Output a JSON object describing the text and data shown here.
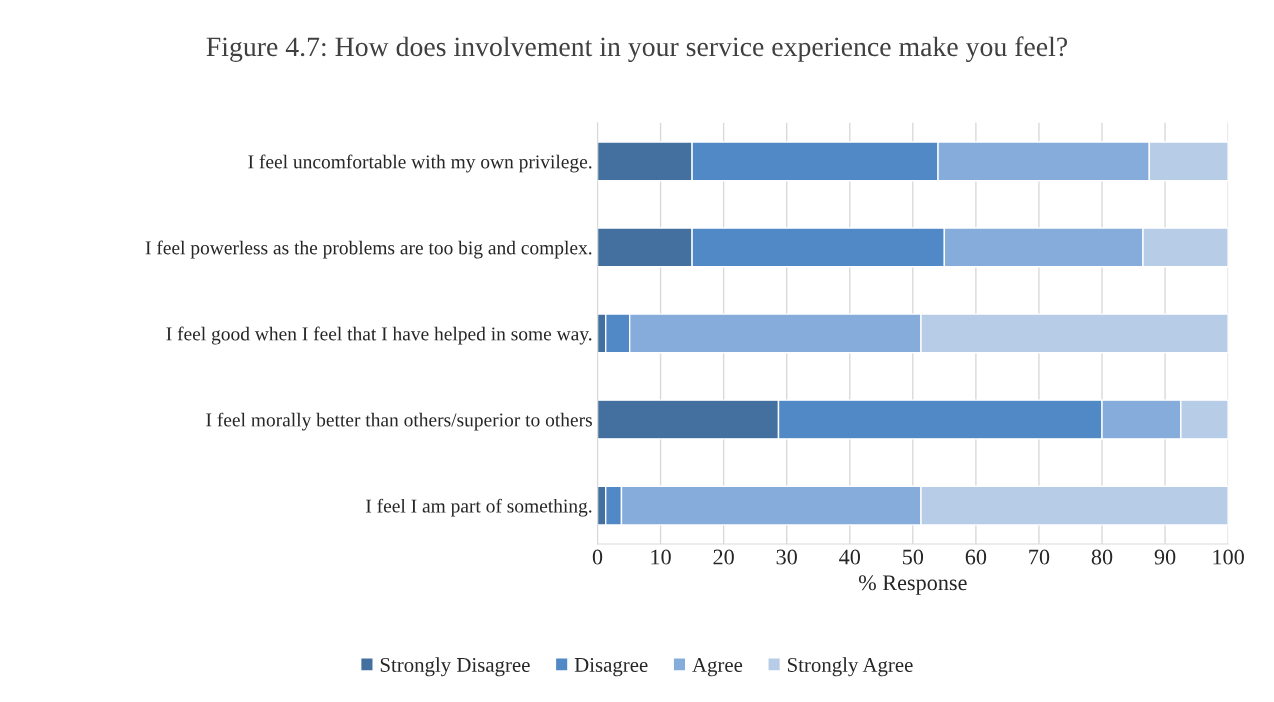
{
  "chart_data": {
    "type": "bar",
    "orientation": "horizontal",
    "stacked": true,
    "title": "Figure 4.7: How does involvement in your service experience make you feel?",
    "xlabel": "% Response",
    "categories": [
      "I feel uncomfortable with my own privilege.",
      "I feel powerless as the problems are too big and complex.",
      "I feel good when I feel that I have helped in some way.",
      "I feel morally better than others/superior to others",
      "I feel I am part of something."
    ],
    "series": [
      {
        "name": "Strongly Disagree",
        "color": "#44709f",
        "values": [
          15,
          15,
          1.3,
          28.7,
          1.3
        ]
      },
      {
        "name": "Disagree",
        "color": "#5089c6",
        "values": [
          39,
          40,
          3.8,
          51.3,
          2.5
        ]
      },
      {
        "name": "Agree",
        "color": "#86acdc",
        "values": [
          33.5,
          31.5,
          46.2,
          12.5,
          47.5
        ]
      },
      {
        "name": "Strongly Agree",
        "color": "#b7cce7",
        "values": [
          12.5,
          13.5,
          48.7,
          7.5,
          48.7
        ]
      }
    ],
    "xlim": [
      0,
      100
    ],
    "xticks": [
      0,
      10,
      20,
      30,
      40,
      50,
      60,
      70,
      80,
      90,
      100
    ],
    "grid": "x",
    "legend": "bottom"
  }
}
